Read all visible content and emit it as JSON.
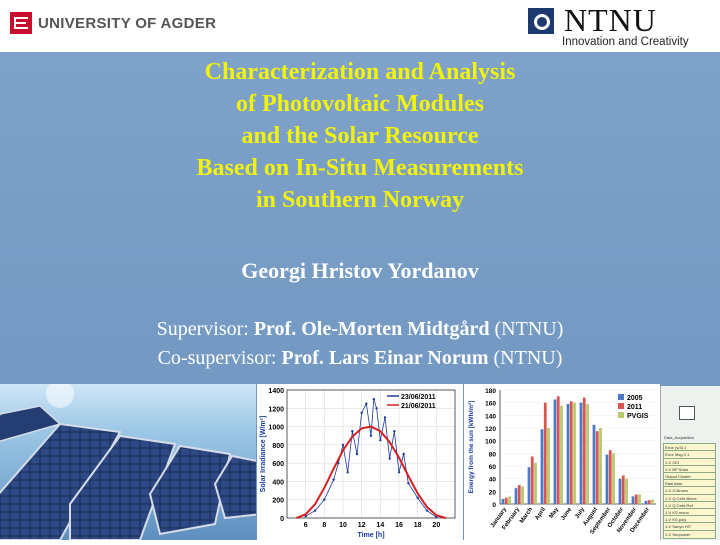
{
  "header": {
    "university": "UNIVERSITY OF AGDER",
    "ntnu_name": "NTNU",
    "ntnu_tagline": "Innovation and Creativity"
  },
  "title_lines": [
    "Characterization and Analysis",
    "of Photovoltaic Modules",
    "and the Solar Resource",
    "Based on In-Situ Measurements",
    "in Southern Norway"
  ],
  "author": "Georgi Hristov Yordanov",
  "supervisor": {
    "role": "Supervisor: ",
    "name": "Prof. Ole-Morten Midtgård",
    "affil": " (NTNU)"
  },
  "cosupervisor": {
    "role": "Co-supervisor: ",
    "name": "Prof. Lars Einar Norum",
    "affil": " (NTNU)"
  },
  "chart_data": [
    {
      "type": "line",
      "xlabel": "Time [h]",
      "ylabel": "Solar Irradiance [W/m²]",
      "xlim": [
        4,
        22
      ],
      "ylim": [
        0,
        1400
      ],
      "xticks": [
        6,
        8,
        10,
        12,
        14,
        16,
        18,
        20
      ],
      "yticks": [
        0,
        200,
        400,
        600,
        800,
        1000,
        1200,
        1400
      ],
      "legend_position": "top-right",
      "series": [
        {
          "name": "23/06/2011",
          "color": "#1a3a9e",
          "x": [
            6,
            7,
            8,
            9,
            9.5,
            10,
            10.5,
            11,
            11.5,
            12,
            12.5,
            13,
            13.3,
            13.6,
            14,
            14.5,
            15,
            15.5,
            16,
            16.5,
            17,
            18,
            19,
            20
          ],
          "y": [
            20,
            80,
            200,
            420,
            600,
            800,
            500,
            950,
            700,
            1150,
            1250,
            900,
            1300,
            1200,
            850,
            1100,
            650,
            950,
            500,
            700,
            380,
            220,
            80,
            10
          ]
        },
        {
          "name": "21/06/2011",
          "color": "#d42020",
          "x": [
            5,
            6,
            7,
            8,
            9,
            10,
            11,
            12,
            13,
            14,
            15,
            16,
            17,
            18,
            19,
            20,
            21
          ],
          "y": [
            0,
            40,
            150,
            330,
            540,
            740,
            890,
            980,
            1000,
            950,
            830,
            660,
            460,
            270,
            120,
            30,
            0
          ]
        }
      ]
    },
    {
      "type": "bar",
      "ylabel": "Energy from the sun [kWh/m²]",
      "ylim": [
        0,
        180
      ],
      "yticks": [
        0,
        20,
        40,
        60,
        80,
        100,
        120,
        140,
        160,
        180
      ],
      "legend_position": "top-right",
      "categories": [
        "January",
        "February",
        "March",
        "April",
        "May",
        "June",
        "July",
        "August",
        "September",
        "October",
        "November",
        "December"
      ],
      "series": [
        {
          "name": "2005",
          "color": "#4a7ac7",
          "values": [
            8,
            25,
            58,
            118,
            165,
            158,
            160,
            125,
            78,
            40,
            12,
            5
          ]
        },
        {
          "name": "2011",
          "color": "#d9534f",
          "values": [
            10,
            30,
            75,
            160,
            170,
            162,
            168,
            115,
            85,
            45,
            15,
            6
          ]
        },
        {
          "name": "PVGIS",
          "color": "#b5c86a",
          "values": [
            12,
            28,
            65,
            120,
            155,
            160,
            158,
            120,
            80,
            40,
            15,
            7
          ]
        }
      ]
    }
  ],
  "diagram_labels": [
    "Data_Acquisition",
    "Error (s/3) 1",
    "Error Msg 3 1",
    "1-V CEI",
    "1-V BP Solar",
    "Output Cluster",
    "Raw data",
    "1-V G.Brown",
    "1-V Q.Cells Blues",
    "1-V Q.Cells Ref",
    "1-V KS.mono",
    "1-V KS.poly",
    "1-V Sanyo HIT",
    "1-V Sunpower"
  ]
}
